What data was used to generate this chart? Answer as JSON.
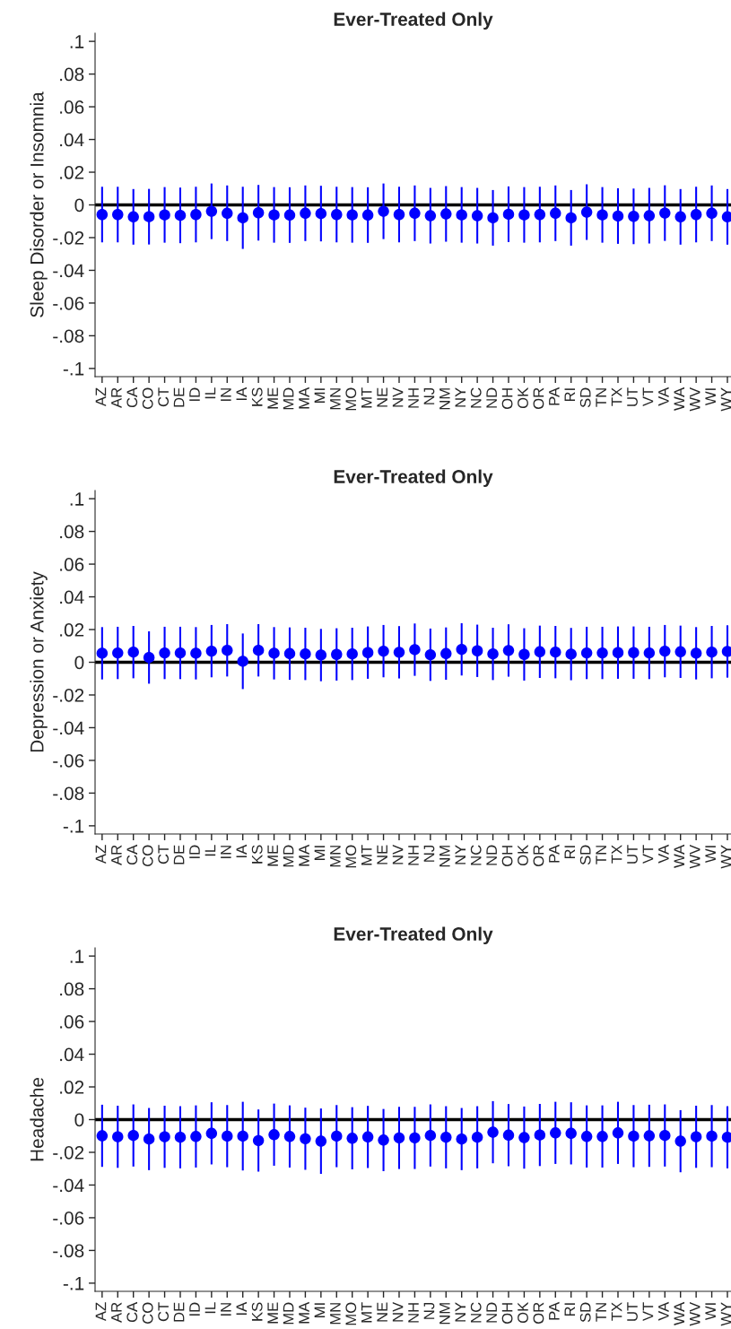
{
  "chart_data": [
    {
      "type": "scatter",
      "title": "Ever-Treated Only",
      "ylabel": "Sleep Disorder or Insomnia",
      "marker": "circle",
      "grid": false,
      "legend": false,
      "categories": [
        "AZ",
        "AR",
        "CA",
        "CO",
        "CT",
        "DE",
        "ID",
        "IL",
        "IN",
        "IA",
        "KS",
        "ME",
        "MD",
        "MA",
        "MI",
        "MN",
        "MO",
        "MT",
        "NE",
        "NV",
        "NH",
        "NJ",
        "NM",
        "NY",
        "NC",
        "ND",
        "OH",
        "OK",
        "OR",
        "PA",
        "RI",
        "SD",
        "TN",
        "TX",
        "UT",
        "VT",
        "VA",
        "WA",
        "WV",
        "WI",
        "WY"
      ],
      "series": [
        {
          "color": "#0000ff",
          "values": [
            -0.0059,
            -0.0059,
            -0.0073,
            -0.0072,
            -0.0061,
            -0.0064,
            -0.0059,
            -0.0039,
            -0.0051,
            -0.0079,
            -0.0048,
            -0.0061,
            -0.0062,
            -0.0051,
            -0.0053,
            -0.0059,
            -0.0061,
            -0.0062,
            -0.0039,
            -0.0059,
            -0.0051,
            -0.0066,
            -0.0055,
            -0.0061,
            -0.0066,
            -0.0079,
            -0.0057,
            -0.0061,
            -0.0059,
            -0.0051,
            -0.0079,
            -0.0044,
            -0.0061,
            -0.0068,
            -0.007,
            -0.0066,
            -0.005,
            -0.0073,
            -0.0059,
            -0.0051,
            -0.0073
          ],
          "errors": [
            0.017,
            0.017,
            0.017,
            0.017,
            0.017,
            0.017,
            0.017,
            0.017,
            0.017,
            0.019,
            0.017,
            0.017,
            0.017,
            0.017,
            0.017,
            0.017,
            0.017,
            0.017,
            0.017,
            0.017,
            0.017,
            0.017,
            0.017,
            0.017,
            0.017,
            0.017,
            0.017,
            0.017,
            0.017,
            0.017,
            0.017,
            0.017,
            0.017,
            0.017,
            0.017,
            0.017,
            0.017,
            0.017,
            0.017,
            0.017,
            0.017
          ]
        }
      ],
      "ylim": [
        -0.105,
        0.105
      ],
      "yticks": [
        {
          "value": -0.1,
          "label": "-.1"
        },
        {
          "value": -0.08,
          "label": "-.08"
        },
        {
          "value": -0.06,
          "label": "-.06"
        },
        {
          "value": -0.04,
          "label": "-.04"
        },
        {
          "value": -0.02,
          "label": "-.02"
        },
        {
          "value": 0,
          "label": "0"
        },
        {
          "value": 0.02,
          "label": ".02"
        },
        {
          "value": 0.04,
          "label": ".04"
        },
        {
          "value": 0.06,
          "label": ".06"
        },
        {
          "value": 0.08,
          "label": ".08"
        },
        {
          "value": 0.1,
          "label": ".1"
        }
      ],
      "ref_lines": [
        {
          "axis": "y",
          "value": 0,
          "color": "#000000"
        }
      ]
    },
    {
      "type": "scatter",
      "title": "Ever-Treated Only",
      "ylabel": "Depression or Anxiety",
      "marker": "circle",
      "grid": false,
      "legend": false,
      "categories": [
        "AZ",
        "AR",
        "CA",
        "CO",
        "CT",
        "DE",
        "ID",
        "IL",
        "IN",
        "IA",
        "KS",
        "ME",
        "MD",
        "MA",
        "MI",
        "MN",
        "MO",
        "MT",
        "NE",
        "NV",
        "NH",
        "NJ",
        "NM",
        "NY",
        "NC",
        "ND",
        "OH",
        "OK",
        "OR",
        "PA",
        "RI",
        "SD",
        "TN",
        "TX",
        "UT",
        "VT",
        "VA",
        "WA",
        "WV",
        "WI",
        "WY"
      ],
      "series": [
        {
          "color": "#0000ff",
          "values": [
            0.0055,
            0.0057,
            0.0062,
            0.0029,
            0.0057,
            0.0057,
            0.0055,
            0.0068,
            0.0073,
            0.0006,
            0.0073,
            0.0055,
            0.0053,
            0.0051,
            0.0044,
            0.0048,
            0.0051,
            0.0059,
            0.0068,
            0.0061,
            0.0077,
            0.0046,
            0.0053,
            0.0079,
            0.007,
            0.0051,
            0.0072,
            0.0048,
            0.0064,
            0.0062,
            0.005,
            0.0057,
            0.0057,
            0.0059,
            0.0059,
            0.0057,
            0.0068,
            0.0064,
            0.0055,
            0.0062,
            0.0066
          ],
          "errors": [
            0.016,
            0.016,
            0.016,
            0.016,
            0.016,
            0.016,
            0.016,
            0.016,
            0.016,
            0.017,
            0.016,
            0.016,
            0.016,
            0.016,
            0.016,
            0.016,
            0.016,
            0.016,
            0.016,
            0.016,
            0.016,
            0.016,
            0.016,
            0.016,
            0.016,
            0.016,
            0.016,
            0.016,
            0.016,
            0.016,
            0.016,
            0.016,
            0.016,
            0.016,
            0.016,
            0.016,
            0.016,
            0.016,
            0.016,
            0.016,
            0.016
          ]
        }
      ],
      "ylim": [
        -0.105,
        0.105
      ],
      "yticks": [
        {
          "value": -0.1,
          "label": "-.1"
        },
        {
          "value": -0.08,
          "label": "-.08"
        },
        {
          "value": -0.06,
          "label": "-.06"
        },
        {
          "value": -0.04,
          "label": "-.04"
        },
        {
          "value": -0.02,
          "label": "-.02"
        },
        {
          "value": 0,
          "label": "0"
        },
        {
          "value": 0.02,
          "label": ".02"
        },
        {
          "value": 0.04,
          "label": ".04"
        },
        {
          "value": 0.06,
          "label": ".06"
        },
        {
          "value": 0.08,
          "label": ".08"
        },
        {
          "value": 0.1,
          "label": ".1"
        }
      ],
      "ref_lines": [
        {
          "axis": "y",
          "value": 0,
          "color": "#000000"
        }
      ]
    },
    {
      "type": "scatter",
      "title": "Ever-Treated Only",
      "ylabel": "Headache",
      "marker": "circle",
      "grid": false,
      "legend": false,
      "categories": [
        "AZ",
        "AR",
        "CA",
        "CO",
        "CT",
        "DE",
        "ID",
        "IL",
        "IN",
        "IA",
        "KS",
        "ME",
        "MD",
        "MA",
        "MI",
        "MN",
        "MO",
        "MT",
        "NE",
        "NV",
        "NH",
        "NJ",
        "NM",
        "NY",
        "NC",
        "ND",
        "OH",
        "OK",
        "OR",
        "PA",
        "RI",
        "SD",
        "TN",
        "TX",
        "UT",
        "VT",
        "VA",
        "WA",
        "WV",
        "WI",
        "WY"
      ],
      "series": [
        {
          "color": "#0000ff",
          "values": [
            -0.0099,
            -0.0105,
            -0.0097,
            -0.0119,
            -0.0105,
            -0.0108,
            -0.0103,
            -0.0084,
            -0.0101,
            -0.0101,
            -0.0128,
            -0.0092,
            -0.0103,
            -0.0117,
            -0.0132,
            -0.0101,
            -0.0114,
            -0.0106,
            -0.0125,
            -0.0112,
            -0.0112,
            -0.0097,
            -0.0108,
            -0.0119,
            -0.0108,
            -0.0077,
            -0.0095,
            -0.011,
            -0.0094,
            -0.0081,
            -0.0084,
            -0.0103,
            -0.0103,
            -0.0081,
            -0.0101,
            -0.0099,
            -0.0097,
            -0.0132,
            -0.0105,
            -0.0101,
            -0.0108
          ],
          "errors": [
            0.019,
            0.019,
            0.019,
            0.019,
            0.019,
            0.019,
            0.019,
            0.019,
            0.019,
            0.021,
            0.019,
            0.019,
            0.019,
            0.019,
            0.02,
            0.019,
            0.019,
            0.019,
            0.019,
            0.019,
            0.019,
            0.019,
            0.019,
            0.019,
            0.019,
            0.019,
            0.019,
            0.019,
            0.019,
            0.019,
            0.019,
            0.019,
            0.019,
            0.019,
            0.019,
            0.019,
            0.019,
            0.019,
            0.019,
            0.019,
            0.019
          ]
        }
      ],
      "ylim": [
        -0.105,
        0.105
      ],
      "yticks": [
        {
          "value": -0.1,
          "label": "-.1"
        },
        {
          "value": -0.08,
          "label": "-.08"
        },
        {
          "value": -0.06,
          "label": "-.06"
        },
        {
          "value": -0.04,
          "label": "-.04"
        },
        {
          "value": -0.02,
          "label": "-.02"
        },
        {
          "value": 0,
          "label": "0"
        },
        {
          "value": 0.02,
          "label": ".02"
        },
        {
          "value": 0.04,
          "label": ".04"
        },
        {
          "value": 0.06,
          "label": ".06"
        },
        {
          "value": 0.08,
          "label": ".08"
        },
        {
          "value": 0.1,
          "label": ".1"
        }
      ],
      "ref_lines": [
        {
          "axis": "y",
          "value": 0,
          "color": "#000000"
        }
      ]
    }
  ]
}
